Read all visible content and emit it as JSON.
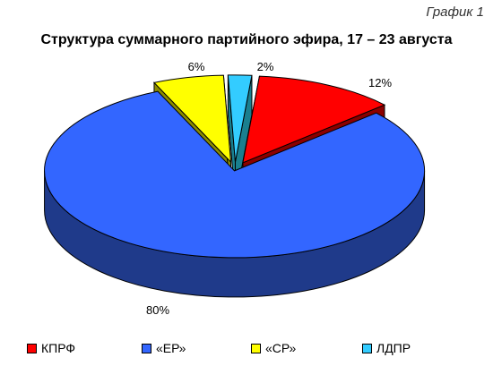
{
  "figure_tag": "График 1",
  "chart_data": {
    "type": "pie",
    "title": "Структура суммарного партийного эфира, 17 – 23 августа",
    "categories": [
      "КПРФ",
      "«ЕР»",
      "«СР»",
      "ЛДПР"
    ],
    "values": [
      12,
      80,
      6,
      2
    ],
    "value_labels": [
      "12%",
      "80%",
      "6%",
      "2%"
    ],
    "colors": [
      "#ff0000",
      "#3366ff",
      "#ffff00",
      "#33ccff"
    ],
    "legend_position": "bottom",
    "style": "3d exploded"
  }
}
